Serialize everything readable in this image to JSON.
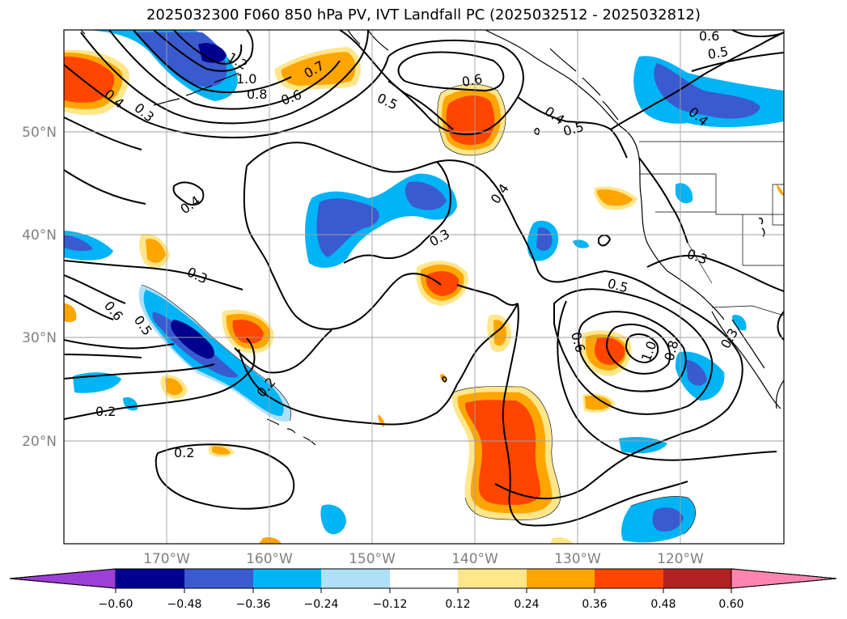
{
  "title": "2025032300 F060 850 hPa PV, IVT Landfall PC (2025032512 - 2025032812)",
  "map": {
    "lon_range": [
      -180,
      -110
    ],
    "lat_range": [
      10,
      60
    ],
    "lat_labels": [
      {
        "value": 50,
        "text": "50°N"
      },
      {
        "value": 40,
        "text": "40°N"
      },
      {
        "value": 30,
        "text": "30°N"
      },
      {
        "value": 20,
        "text": "20°N"
      }
    ],
    "lon_labels": [
      {
        "value": -170,
        "text": "170°W"
      },
      {
        "value": -160,
        "text": "160°W"
      },
      {
        "value": -150,
        "text": "150°W"
      },
      {
        "value": -140,
        "text": "140°W"
      },
      {
        "value": -130,
        "text": "130°W"
      },
      {
        "value": -120,
        "text": "120°W"
      }
    ],
    "grid": true
  },
  "colorbar": {
    "colors": [
      "#9b3fd6",
      "#000090",
      "#3a5ad0",
      "#00b4f5",
      "#aee0fa",
      "#ffffff",
      "#ffe68a",
      "#ffa500",
      "#ff4500",
      "#b22222",
      "#ff85b0"
    ],
    "ticks": [
      "−0.60",
      "−0.48",
      "−0.36",
      "−0.24",
      "−0.12",
      "0.12",
      "0.24",
      "0.36",
      "0.48",
      "0.60"
    ]
  },
  "contour_labels": [
    "1.2",
    "1.0",
    "0.8",
    "0.6",
    "0.7",
    "0.4",
    "0.3",
    "0.6",
    "0.5",
    "0.4",
    "0.5",
    "0.6",
    "0.5",
    "0.4",
    "0.4",
    "0.3",
    "0.3",
    "0.6",
    "0.4",
    "0.5",
    "0.2",
    "0.2",
    "0.2",
    "0.5",
    "0.3",
    "0.6",
    "1.0",
    "0.8",
    "0.3",
    "0.2",
    "0.6",
    "0.5",
    "0.3"
  ]
}
